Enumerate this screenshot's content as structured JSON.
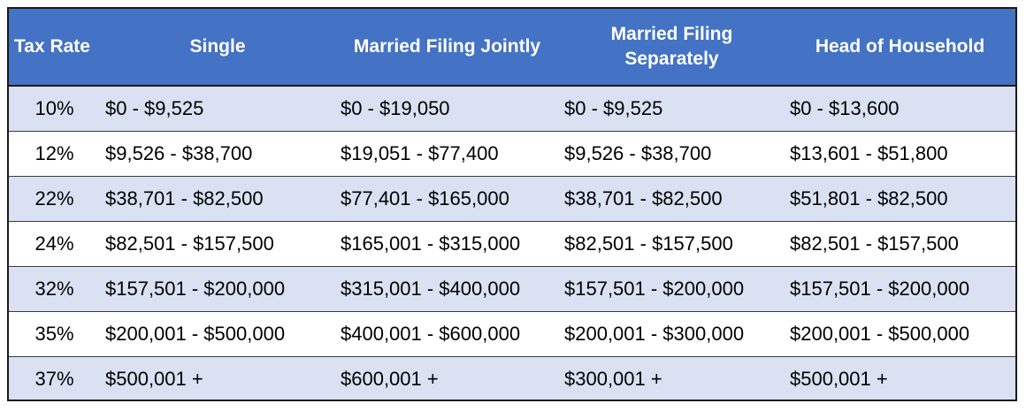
{
  "headers": [
    "Tax Rate",
    "Single",
    "Married Filing Jointly",
    "Married Filing Separately",
    "Head of Household"
  ],
  "rows": [
    [
      "10%",
      "$0 - $9,525",
      "$0 - $19,050",
      "$0 - $9,525",
      "$0 - $13,600"
    ],
    [
      "12%",
      "$9,526 - $38,700",
      "$19,051 - $77,400",
      "$9,526 - $38,700",
      "$13,601 - $51,800"
    ],
    [
      "22%",
      "$38,701 - $82,500",
      "$77,401 - $165,000",
      "$38,701 - $82,500",
      "$51,801 - $82,500"
    ],
    [
      "24%",
      "$82,501 - $157,500",
      "$165,001 - $315,000",
      "$82,501 - $157,500",
      "$82,501 - $157,500"
    ],
    [
      "32%",
      "$157,501 - $200,000",
      "$315,001 - $400,000",
      "$157,501 - $200,000",
      "$157,501 - $200,000"
    ],
    [
      "35%",
      "$200,001 - $500,000",
      "$400,001 - $600,000",
      "$200,001 - $300,000",
      "$200,001 - $500,000"
    ],
    [
      "37%",
      "$500,001 +",
      "$600,001 +",
      "$300,001 +",
      "$500,001 +"
    ]
  ],
  "colors": {
    "header_bg": "#4472c4",
    "band_bg": "#d9e1f2",
    "row_bg": "#ffffff",
    "header_text": "#ffffff"
  }
}
